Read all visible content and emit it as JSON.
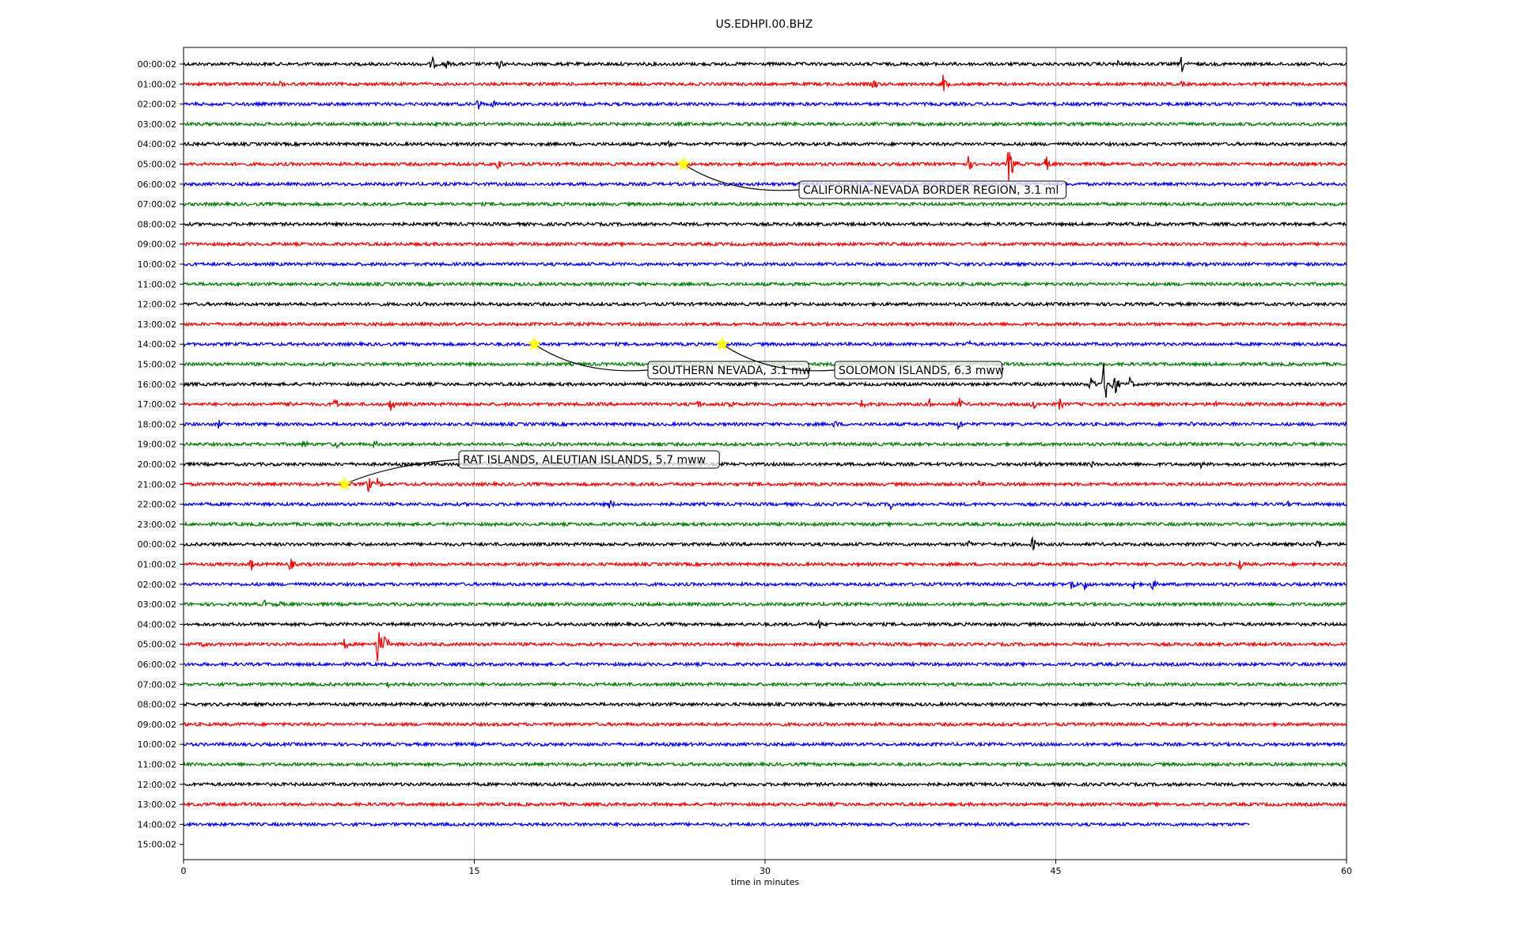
{
  "chart_data": {
    "type": "line",
    "title": "US.EDHPI.00.BHZ",
    "xlabel": "time in minutes",
    "xlim": [
      0,
      60
    ],
    "x_ticks": [
      0,
      15,
      30,
      45,
      60
    ],
    "x_tick_labels": [
      "0",
      "15",
      "30",
      "45",
      "60"
    ],
    "grid": "vertical at 15-minute ticks",
    "row_labels": [
      "00:00:02",
      "01:00:02",
      "02:00:02",
      "03:00:02",
      "04:00:02",
      "05:00:02",
      "06:00:02",
      "07:00:02",
      "08:00:02",
      "09:00:02",
      "10:00:02",
      "11:00:02",
      "12:00:02",
      "13:00:02",
      "14:00:02",
      "15:00:02",
      "16:00:02",
      "17:00:02",
      "18:00:02",
      "19:00:02",
      "20:00:02",
      "21:00:02",
      "22:00:02",
      "23:00:02",
      "00:00:02",
      "01:00:02",
      "02:00:02",
      "03:00:02",
      "04:00:02",
      "05:00:02",
      "06:00:02",
      "07:00:02",
      "08:00:02",
      "09:00:02",
      "10:00:02",
      "11:00:02",
      "12:00:02",
      "13:00:02",
      "14:00:02",
      "15:00:02"
    ],
    "trace_colors": [
      "#000000",
      "#ff0000",
      "#0000ff",
      "#008000"
    ],
    "last_trace_row": 38,
    "last_trace_end_minute": 55,
    "bursts": [
      {
        "row": 0,
        "minute": 12.8,
        "amp": 1.0
      },
      {
        "row": 0,
        "minute": 13.5,
        "amp": 0.8
      },
      {
        "row": 0,
        "minute": 16.3,
        "amp": 0.6
      },
      {
        "row": 0,
        "minute": 48.2,
        "amp": 0.5
      },
      {
        "row": 0,
        "minute": 51.5,
        "amp": 1.1
      },
      {
        "row": 1,
        "minute": 5.0,
        "amp": 0.5
      },
      {
        "row": 1,
        "minute": 35.6,
        "amp": 0.9
      },
      {
        "row": 1,
        "minute": 39.2,
        "amp": 1.2
      },
      {
        "row": 1,
        "minute": 51.5,
        "amp": 0.4
      },
      {
        "row": 2,
        "minute": 15.2,
        "amp": 0.8
      },
      {
        "row": 2,
        "minute": 16.0,
        "amp": 0.6
      },
      {
        "row": 4,
        "minute": 25.0,
        "amp": 0.5
      },
      {
        "row": 5,
        "minute": 16.2,
        "amp": 0.9
      },
      {
        "row": 5,
        "minute": 40.5,
        "amp": 1.0
      },
      {
        "row": 5,
        "minute": 42.6,
        "amp": 2.6
      },
      {
        "row": 5,
        "minute": 44.5,
        "amp": 1.0
      },
      {
        "row": 14,
        "minute": 40.5,
        "amp": 0.5
      },
      {
        "row": 16,
        "minute": 46.8,
        "amp": 1.2
      },
      {
        "row": 16,
        "minute": 47.5,
        "amp": 3.0
      },
      {
        "row": 16,
        "minute": 48.0,
        "amp": 1.6
      },
      {
        "row": 16,
        "minute": 48.8,
        "amp": 1.0
      },
      {
        "row": 17,
        "minute": 5.5,
        "amp": 0.8
      },
      {
        "row": 17,
        "minute": 7.8,
        "amp": 0.9
      },
      {
        "row": 17,
        "minute": 10.7,
        "amp": 1.0
      },
      {
        "row": 17,
        "minute": 26.5,
        "amp": 0.7
      },
      {
        "row": 17,
        "minute": 28.2,
        "amp": 0.8
      },
      {
        "row": 17,
        "minute": 35.0,
        "amp": 0.7
      },
      {
        "row": 17,
        "minute": 38.5,
        "amp": 0.7
      },
      {
        "row": 17,
        "minute": 40.0,
        "amp": 0.9
      },
      {
        "row": 17,
        "minute": 43.8,
        "amp": 0.9
      },
      {
        "row": 17,
        "minute": 45.2,
        "amp": 0.8
      },
      {
        "row": 17,
        "minute": 53.2,
        "amp": 0.6
      },
      {
        "row": 18,
        "minute": 1.8,
        "amp": 0.6
      },
      {
        "row": 18,
        "minute": 33.6,
        "amp": 0.6
      },
      {
        "row": 18,
        "minute": 40.0,
        "amp": 0.8
      },
      {
        "row": 18,
        "minute": 52.0,
        "amp": 0.5
      },
      {
        "row": 18,
        "minute": 54.2,
        "amp": 0.5
      },
      {
        "row": 19,
        "minute": 6.2,
        "amp": 0.7
      },
      {
        "row": 19,
        "minute": 7.8,
        "amp": 0.8
      },
      {
        "row": 19,
        "minute": 9.8,
        "amp": 0.7
      },
      {
        "row": 19,
        "minute": 24.5,
        "amp": 0.5
      },
      {
        "row": 19,
        "minute": 35.5,
        "amp": 0.5
      },
      {
        "row": 20,
        "minute": 15.5,
        "amp": 0.4
      },
      {
        "row": 20,
        "minute": 26.5,
        "amp": 0.6
      },
      {
        "row": 20,
        "minute": 36.0,
        "amp": 0.5
      },
      {
        "row": 20,
        "minute": 44.0,
        "amp": 0.6
      },
      {
        "row": 20,
        "minute": 46.8,
        "amp": 0.6
      },
      {
        "row": 20,
        "minute": 52.5,
        "amp": 0.5
      },
      {
        "row": 21,
        "minute": 9.5,
        "amp": 1.2
      },
      {
        "row": 21,
        "minute": 10.0,
        "amp": 0.8
      },
      {
        "row": 21,
        "minute": 41.0,
        "amp": 0.5
      },
      {
        "row": 22,
        "minute": 22.0,
        "amp": 0.7
      },
      {
        "row": 22,
        "minute": 36.5,
        "amp": 0.8
      },
      {
        "row": 22,
        "minute": 57.0,
        "amp": 0.4
      },
      {
        "row": 24,
        "minute": 40.5,
        "amp": 0.6
      },
      {
        "row": 24,
        "minute": 43.8,
        "amp": 1.0
      },
      {
        "row": 24,
        "minute": 58.5,
        "amp": 0.7
      },
      {
        "row": 25,
        "minute": 3.5,
        "amp": 0.8
      },
      {
        "row": 25,
        "minute": 5.5,
        "amp": 0.9
      },
      {
        "row": 25,
        "minute": 54.5,
        "amp": 0.7
      },
      {
        "row": 26,
        "minute": 45.8,
        "amp": 1.0
      },
      {
        "row": 26,
        "minute": 46.5,
        "amp": 0.8
      },
      {
        "row": 26,
        "minute": 49.0,
        "amp": 0.7
      },
      {
        "row": 26,
        "minute": 50.0,
        "amp": 0.8
      },
      {
        "row": 27,
        "minute": 4.2,
        "amp": 0.6
      },
      {
        "row": 27,
        "minute": 4.9,
        "amp": 0.6
      },
      {
        "row": 28,
        "minute": 32.8,
        "amp": 0.6
      },
      {
        "row": 29,
        "minute": 1.0,
        "amp": 0.6
      },
      {
        "row": 29,
        "minute": 8.3,
        "amp": 0.8
      },
      {
        "row": 29,
        "minute": 10.0,
        "amp": 2.4
      },
      {
        "row": 29,
        "minute": 10.4,
        "amp": 1.2
      },
      {
        "row": 31,
        "minute": 10.5,
        "amp": 0.5
      }
    ],
    "events": [
      {
        "label": "CALIFORNIA-NEVADA BORDER REGION, 3.1 ml",
        "row": 5,
        "minute": 25.8
      },
      {
        "label": "SOUTHERN NEVADA, 3.1 mw",
        "row": 14,
        "minute": 18.1
      },
      {
        "label": "SOLOMON ISLANDS, 6.3 mww",
        "row": 14,
        "minute": 27.8
      },
      {
        "label": "RAT ISLANDS, ALEUTIAN ISLANDS, 5.7 mww",
        "row": 21,
        "minute": 8.3
      }
    ]
  }
}
